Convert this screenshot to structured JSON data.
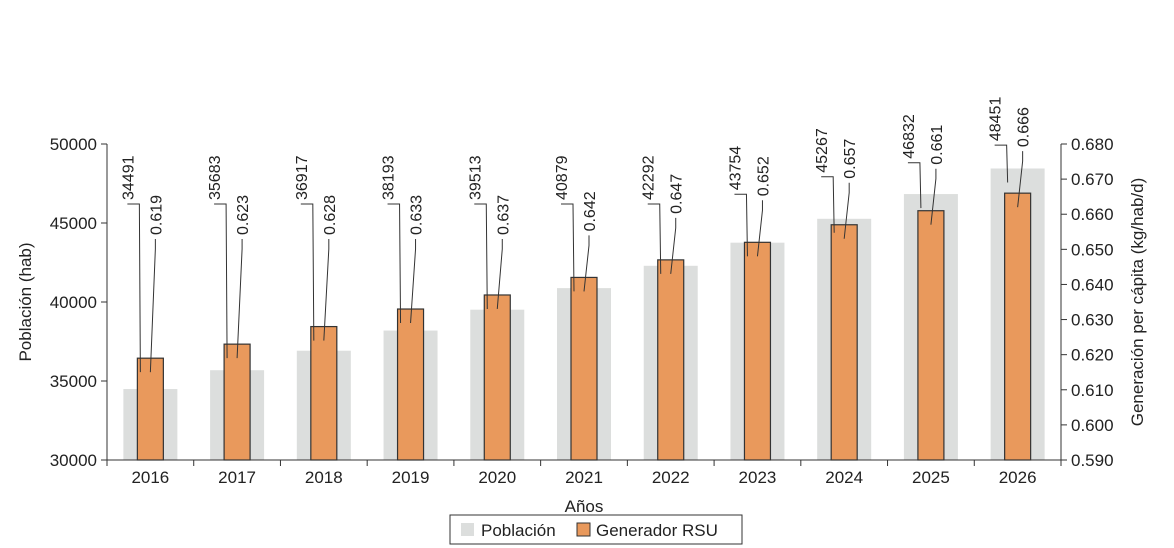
{
  "chart_data": {
    "type": "bar",
    "categories": [
      "2016",
      "2017",
      "2018",
      "2019",
      "2020",
      "2021",
      "2022",
      "2023",
      "2024",
      "2025",
      "2026"
    ],
    "series": [
      {
        "name": "Población",
        "axis": "left",
        "values": [
          34491,
          35683,
          36917,
          38193,
          39513,
          40879,
          42292,
          43754,
          45267,
          46832,
          48451
        ],
        "labels": [
          "34491",
          "35683",
          "36917",
          "38193",
          "39513",
          "40879",
          "42292",
          "43754",
          "45267",
          "46832",
          "48451"
        ],
        "color": "#dcdedd"
      },
      {
        "name": "Generador RSU",
        "axis": "right",
        "values": [
          0.619,
          0.623,
          0.628,
          0.633,
          0.637,
          0.642,
          0.647,
          0.652,
          0.657,
          0.661,
          0.666
        ],
        "labels": [
          "0.619",
          "0.623",
          "0.628",
          "0.633",
          "0.637",
          "0.642",
          "0.647",
          "0.652",
          "0.657",
          "0.661",
          "0.666"
        ],
        "color": "#e9995c"
      }
    ],
    "xlabel": "Años",
    "ylabel": "Población (hab)",
    "y2label": "Generación per cápita (kg/hab/d)",
    "ylim": [
      30000,
      50000
    ],
    "yticks": [
      "50000",
      "45000",
      "40000",
      "35000",
      "30000"
    ],
    "y2lim": [
      0.59,
      0.68
    ],
    "y2ticks": [
      "0.680",
      "0.670",
      "0.660",
      "0.650",
      "0.640",
      "0.630",
      "0.620",
      "0.610",
      "0.600",
      "0.590"
    ],
    "legend_position": "bottom-center",
    "grid": false
  }
}
